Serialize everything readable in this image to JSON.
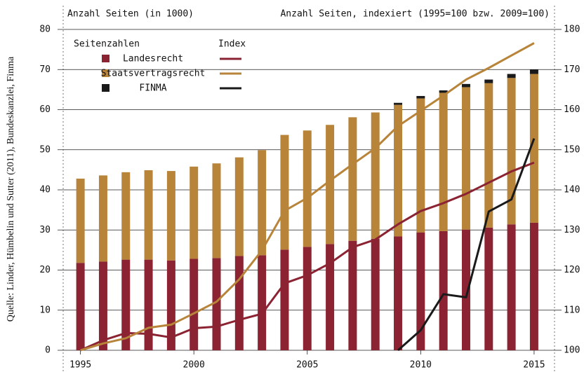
{
  "chart_data": {
    "type": "bar",
    "title_left": "Anzahl Seiten (in 1000)",
    "title_right": "Anzahl Seiten, indexiert (1995=100 bzw. 2009=100)",
    "legend_bar_header": "Seitenzahlen",
    "legend_line_header": "Index",
    "source": "Quelle: Linder, Hümbelin und Sutter (2011), Bundeskanzlei, Finma",
    "x": [
      1995,
      1996,
      1997,
      1998,
      1999,
      2000,
      2001,
      2002,
      2003,
      2004,
      2005,
      2006,
      2007,
      2008,
      2009,
      2010,
      2011,
      2012,
      2013,
      2014,
      2015
    ],
    "xlim": [
      1994.3,
      2015.9
    ],
    "xticks": [
      1995,
      2000,
      2005,
      2010,
      2015
    ],
    "ylim": [
      0,
      80
    ],
    "yticks": [
      0,
      10,
      20,
      30,
      40,
      50,
      60,
      70,
      80
    ],
    "y2lim": [
      100,
      180
    ],
    "y2ticks": [
      100,
      110,
      120,
      130,
      140,
      150,
      160,
      170,
      180
    ],
    "grid": true,
    "stacked": true,
    "series": [
      {
        "name": "Landesrecht",
        "color": "#8b2332",
        "values": [
          21.8,
          22.1,
          22.6,
          22.6,
          22.4,
          22.8,
          23.0,
          23.5,
          23.7,
          25.1,
          25.8,
          26.5,
          27.3,
          27.8,
          28.4,
          29.4,
          29.7,
          30.1,
          30.6,
          31.4,
          31.8
        ]
      },
      {
        "name": "Staatsvertragsrecht",
        "color": "#b8843a",
        "values": [
          21.0,
          21.5,
          21.8,
          22.3,
          22.3,
          23.0,
          23.6,
          24.6,
          26.2,
          28.6,
          29.0,
          29.7,
          30.8,
          31.5,
          32.8,
          33.4,
          34.5,
          35.5,
          36.0,
          36.5,
          37.1
        ]
      },
      {
        "name": "FINMA",
        "color": "#1a1a1a",
        "values": [
          null,
          null,
          null,
          null,
          null,
          null,
          null,
          null,
          null,
          null,
          null,
          null,
          null,
          null,
          0.5,
          0.6,
          0.6,
          0.8,
          0.9,
          1.0,
          1.1
        ]
      }
    ],
    "lines": [
      {
        "color": "#8b2332",
        "axis": "y2",
        "values": [
          100,
          102.5,
          104.3,
          104.1,
          103.2,
          105.5,
          105.9,
          107.6,
          109.1,
          116.7,
          118.7,
          121.7,
          125.7,
          127.6,
          131.4,
          134.7,
          136.7,
          139.0,
          141.8,
          144.6,
          146.8
        ]
      },
      {
        "color": "#b8843a",
        "axis": "y2",
        "values": [
          100,
          101.7,
          103.0,
          105.6,
          106.4,
          109.2,
          112.1,
          117.7,
          124.9,
          134.8,
          138.0,
          142.3,
          146.4,
          150.4,
          155.9,
          159.7,
          163.5,
          167.5,
          170.4,
          173.5,
          176.6
        ]
      },
      {
        "color": "#1a1a1a",
        "axis": "y2",
        "values": [
          null,
          null,
          null,
          null,
          null,
          null,
          null,
          null,
          null,
          null,
          null,
          null,
          null,
          null,
          100,
          105.0,
          114.0,
          113.2,
          134.6,
          137.6,
          152.8
        ]
      }
    ]
  }
}
